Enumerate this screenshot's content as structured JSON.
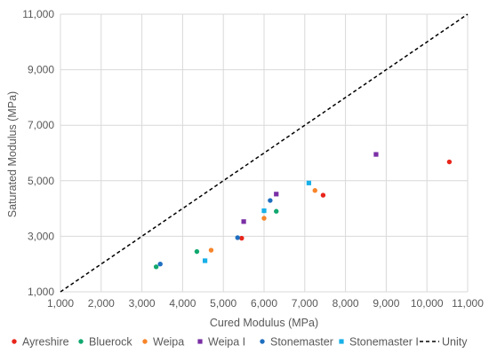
{
  "chart_data": {
    "type": "scatter",
    "xlabel": "Cured Modulus (MPa)",
    "ylabel": "Saturated Modulus (MPa)",
    "xlim": [
      1000,
      11000
    ],
    "ylim": [
      1000,
      11000
    ],
    "x_ticks": [
      1000,
      2000,
      3000,
      4000,
      5000,
      6000,
      7000,
      8000,
      9000,
      10000,
      11000
    ],
    "y_ticks": [
      1000,
      3000,
      5000,
      7000,
      9000,
      11000
    ],
    "x_tick_labels": [
      "1,000",
      "2,000",
      "3,000",
      "4,000",
      "5,000",
      "6,000",
      "7,000",
      "8,000",
      "9,000",
      "10,000",
      "11,000"
    ],
    "y_tick_labels": [
      "1,000",
      "3,000",
      "5,000",
      "7,000",
      "9,000",
      "11,000"
    ],
    "grid": true,
    "legend_position": "bottom",
    "series": [
      {
        "name": "Ayreshire",
        "marker": "circle",
        "color": "#e8251b",
        "points": [
          [
            5450,
            2930
          ],
          [
            7450,
            4480
          ],
          [
            10550,
            5680
          ]
        ]
      },
      {
        "name": "Bluerock",
        "marker": "circle",
        "color": "#11a86f",
        "points": [
          [
            3350,
            1900
          ],
          [
            4350,
            2450
          ],
          [
            6300,
            3900
          ]
        ]
      },
      {
        "name": "Weipa",
        "marker": "circle",
        "color": "#f7852a",
        "points": [
          [
            4700,
            2500
          ],
          [
            6000,
            3650
          ],
          [
            7250,
            4650
          ]
        ]
      },
      {
        "name": "Weipa I",
        "marker": "square",
        "color": "#7a2fa5",
        "points": [
          [
            5500,
            3530
          ],
          [
            6300,
            4520
          ],
          [
            8750,
            5950
          ]
        ]
      },
      {
        "name": "Stonemaster",
        "marker": "circle",
        "color": "#1f6fc0",
        "points": [
          [
            3450,
            2000
          ],
          [
            5350,
            2950
          ],
          [
            6150,
            4290
          ]
        ]
      },
      {
        "name": "Stonemaster I",
        "marker": "square",
        "color": "#17b0e8",
        "points": [
          [
            4550,
            2120
          ],
          [
            6000,
            3920
          ],
          [
            7100,
            4920
          ]
        ]
      }
    ],
    "reference_line": {
      "name": "Unity",
      "style": "dashed",
      "color": "#000000",
      "points": [
        [
          1000,
          1000
        ],
        [
          11000,
          11000
        ]
      ]
    }
  }
}
